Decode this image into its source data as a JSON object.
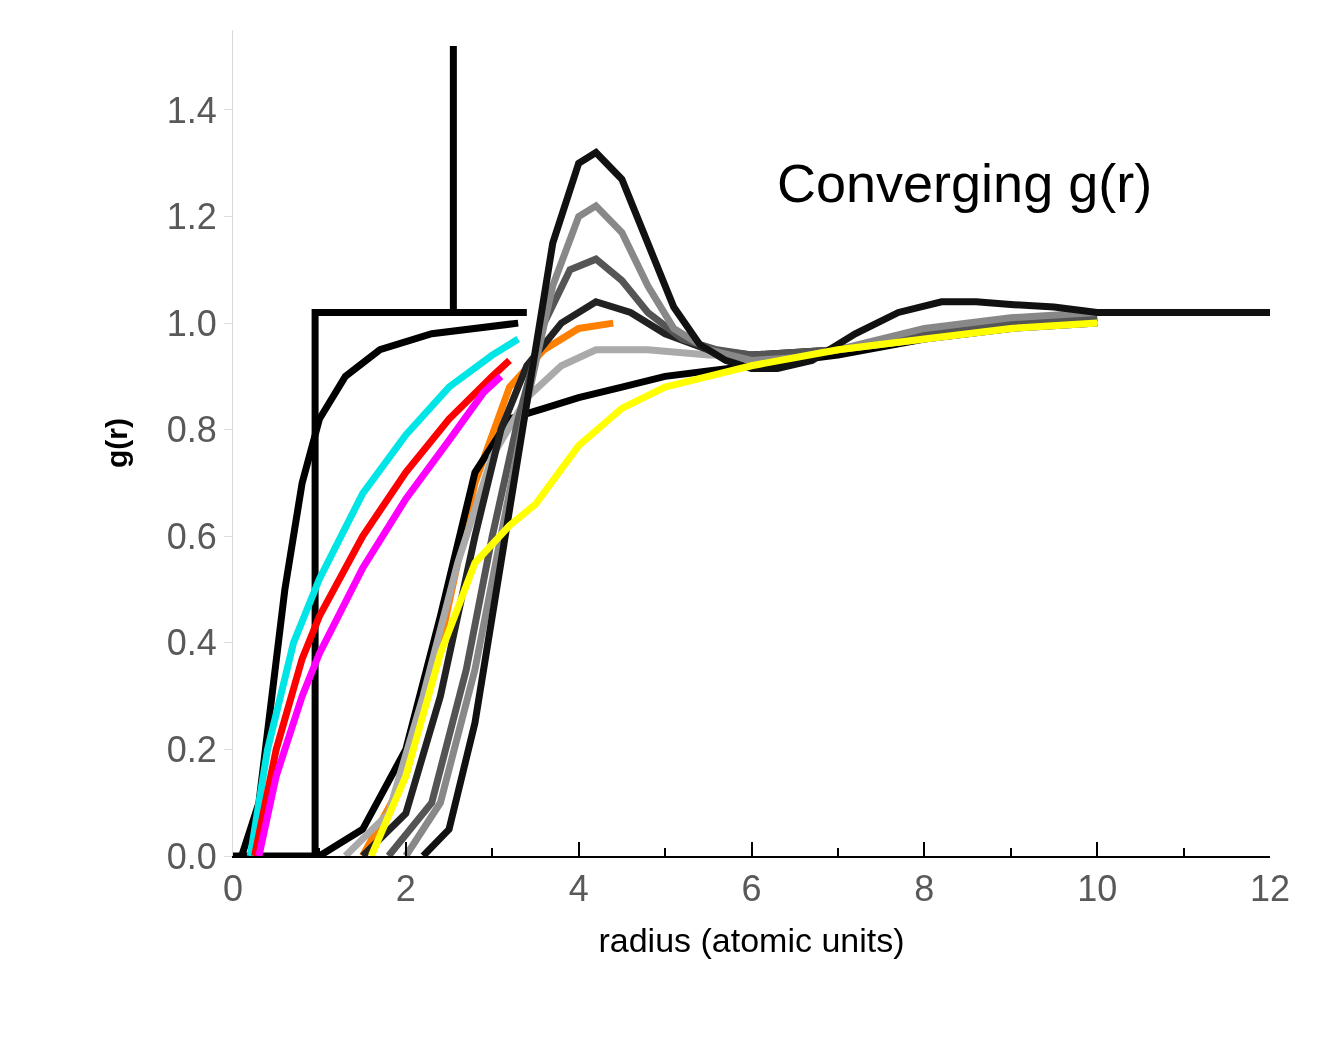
{
  "chart_data": {
    "type": "line",
    "annotations": [
      "Converging g(r)"
    ],
    "xlabel": "radius (atomic units)",
    "ylabel": "g(r)",
    "xlim": [
      0,
      12
    ],
    "xticks": [
      0,
      2,
      4,
      6,
      8,
      10,
      12
    ],
    "ylim": [
      0,
      1.55
    ],
    "yticks": [
      {
        "value": 0,
        "label": "0.0"
      },
      0.2,
      0.4,
      0.6,
      0.8,
      {
        "value": 1.0,
        "label": "1.0"
      },
      1.2,
      1.4
    ],
    "series": [
      {
        "color": "#000000",
        "x": [
          0,
          0.95,
          0.95,
          2.55,
          2.55,
          2.55,
          3.4
        ],
        "values": [
          0,
          0,
          1.02,
          1.02,
          1.52,
          1.02,
          1.02
        ]
      },
      {
        "color": "#000000",
        "x": [
          0.1,
          0.3,
          0.45,
          0.6,
          0.8,
          1.0,
          1.3,
          1.7,
          2.3,
          3.3
        ],
        "values": [
          0,
          0.1,
          0.3,
          0.5,
          0.7,
          0.82,
          0.9,
          0.95,
          0.98,
          1.0
        ]
      },
      {
        "color": "#00e5e5",
        "x": [
          0.2,
          0.4,
          0.7,
          1.0,
          1.5,
          2.0,
          2.5,
          3.0,
          3.3
        ],
        "values": [
          0,
          0.2,
          0.4,
          0.52,
          0.68,
          0.79,
          0.88,
          0.94,
          0.97
        ]
      },
      {
        "color": "#ff0000",
        "x": [
          0.25,
          0.5,
          0.8,
          1.0,
          1.5,
          2.0,
          2.5,
          3.0,
          3.2
        ],
        "values": [
          0,
          0.2,
          0.37,
          0.45,
          0.6,
          0.72,
          0.82,
          0.9,
          0.93
        ]
      },
      {
        "color": "#ff00ff",
        "x": [
          0.3,
          0.5,
          0.8,
          1.0,
          1.5,
          2.0,
          2.5,
          2.9,
          3.1
        ],
        "values": [
          0,
          0.15,
          0.3,
          0.38,
          0.54,
          0.67,
          0.78,
          0.87,
          0.9
        ]
      },
      {
        "color": "#ffff00",
        "x": [
          1.6,
          2.0,
          2.4,
          2.8,
          3.2,
          3.5,
          4.0,
          4.5,
          5.0,
          5.5,
          6.0,
          7.0,
          8.0,
          9.0,
          10.0
        ],
        "values": [
          0,
          0.15,
          0.38,
          0.55,
          0.62,
          0.66,
          0.77,
          0.84,
          0.88,
          0.9,
          0.92,
          0.95,
          0.97,
          0.99,
          1.0
        ]
      },
      {
        "color": "#ff8000",
        "x": [
          1.5,
          2.0,
          2.4,
          2.8,
          3.2,
          3.6,
          4.0,
          4.4
        ],
        "values": [
          0,
          0.15,
          0.4,
          0.7,
          0.88,
          0.95,
          0.99,
          1.0
        ]
      },
      {
        "color": "#000000",
        "x": [
          1.0,
          1.5,
          2.0,
          2.4,
          2.8,
          3.2,
          3.6,
          4.0,
          4.5,
          5.0,
          5.5,
          6.0,
          7.0,
          8.0,
          9.0,
          10.0
        ],
        "values": [
          0,
          0.05,
          0.2,
          0.45,
          0.72,
          0.82,
          0.84,
          0.86,
          0.88,
          0.9,
          0.91,
          0.92,
          0.94,
          0.97,
          0.99,
          1.0
        ]
      },
      {
        "color": "#aaaaaa",
        "x": [
          1.3,
          1.8,
          2.2,
          2.6,
          3.0,
          3.4,
          3.8,
          4.2,
          4.8,
          5.5,
          6.0,
          7.0,
          8.0,
          9.0,
          10.0
        ],
        "values": [
          0,
          0.08,
          0.3,
          0.55,
          0.75,
          0.86,
          0.92,
          0.95,
          0.95,
          0.94,
          0.94,
          0.95,
          0.97,
          0.99,
          1.0
        ]
      },
      {
        "color": "#222222",
        "x": [
          1.5,
          2.0,
          2.4,
          2.8,
          3.1,
          3.4,
          3.8,
          4.2,
          4.6,
          5.0,
          5.5,
          6.0,
          7.0,
          8.0,
          9.0,
          10.0
        ],
        "values": [
          0,
          0.08,
          0.3,
          0.6,
          0.8,
          0.92,
          1.0,
          1.04,
          1.02,
          0.98,
          0.95,
          0.94,
          0.95,
          0.98,
          1.0,
          1.01
        ]
      },
      {
        "color": "#555555",
        "x": [
          1.8,
          2.3,
          2.7,
          3.0,
          3.3,
          3.6,
          3.9,
          4.2,
          4.5,
          4.8,
          5.2,
          5.6,
          6.0,
          7.0,
          8.0,
          9.0,
          10.0
        ],
        "values": [
          0,
          0.1,
          0.35,
          0.6,
          0.82,
          1.0,
          1.1,
          1.12,
          1.08,
          1.02,
          0.97,
          0.95,
          0.94,
          0.95,
          0.98,
          1.0,
          1.01
        ]
      },
      {
        "color": "#888888",
        "x": [
          2.0,
          2.4,
          2.8,
          3.1,
          3.4,
          3.7,
          4.0,
          4.2,
          4.5,
          4.8,
          5.1,
          5.5,
          6.0,
          6.5,
          7.0,
          8.0,
          9.0,
          10.0
        ],
        "values": [
          0,
          0.1,
          0.35,
          0.6,
          0.85,
          1.07,
          1.2,
          1.22,
          1.17,
          1.07,
          0.99,
          0.95,
          0.93,
          0.935,
          0.95,
          0.99,
          1.01,
          1.02
        ]
      },
      {
        "color": "#111111",
        "x": [
          2.2,
          2.5,
          2.8,
          3.1,
          3.4,
          3.7,
          4.0,
          4.2,
          4.5,
          4.8,
          5.1,
          5.4,
          5.7,
          6.0,
          6.3,
          6.7,
          7.2,
          7.7,
          8.2,
          8.6,
          9.0,
          9.5,
          10,
          11,
          12
        ],
        "values": [
          0,
          0.05,
          0.25,
          0.55,
          0.85,
          1.15,
          1.3,
          1.32,
          1.27,
          1.15,
          1.03,
          0.96,
          0.93,
          0.915,
          0.915,
          0.93,
          0.98,
          1.02,
          1.04,
          1.04,
          1.035,
          1.03,
          1.02,
          1.02,
          1.02
        ]
      }
    ]
  }
}
